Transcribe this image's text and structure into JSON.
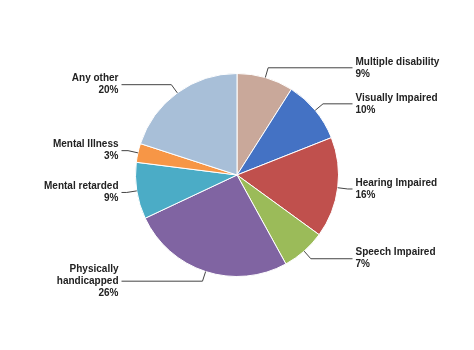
{
  "chart_data": {
    "type": "pie",
    "categories": [
      "Multiple disability",
      "Visually Impaired",
      "Hearing Impaired",
      "Speech Impaired",
      "Physically\nhandicapped",
      "Mental retarded",
      "Mental Illness",
      "Any other"
    ],
    "values": [
      9,
      10,
      16,
      7,
      26,
      9,
      3,
      20
    ],
    "value_labels": [
      "9%",
      "10%",
      "16%",
      "7%",
      "26%",
      "9%",
      "3%",
      "20%"
    ],
    "colors": [
      "#c9a89a",
      "#4472c4",
      "#c0504d",
      "#9bbb59",
      "#8064a2",
      "#4bacc6",
      "#f79646",
      "#a8bfd8"
    ],
    "data_labels": true
  }
}
